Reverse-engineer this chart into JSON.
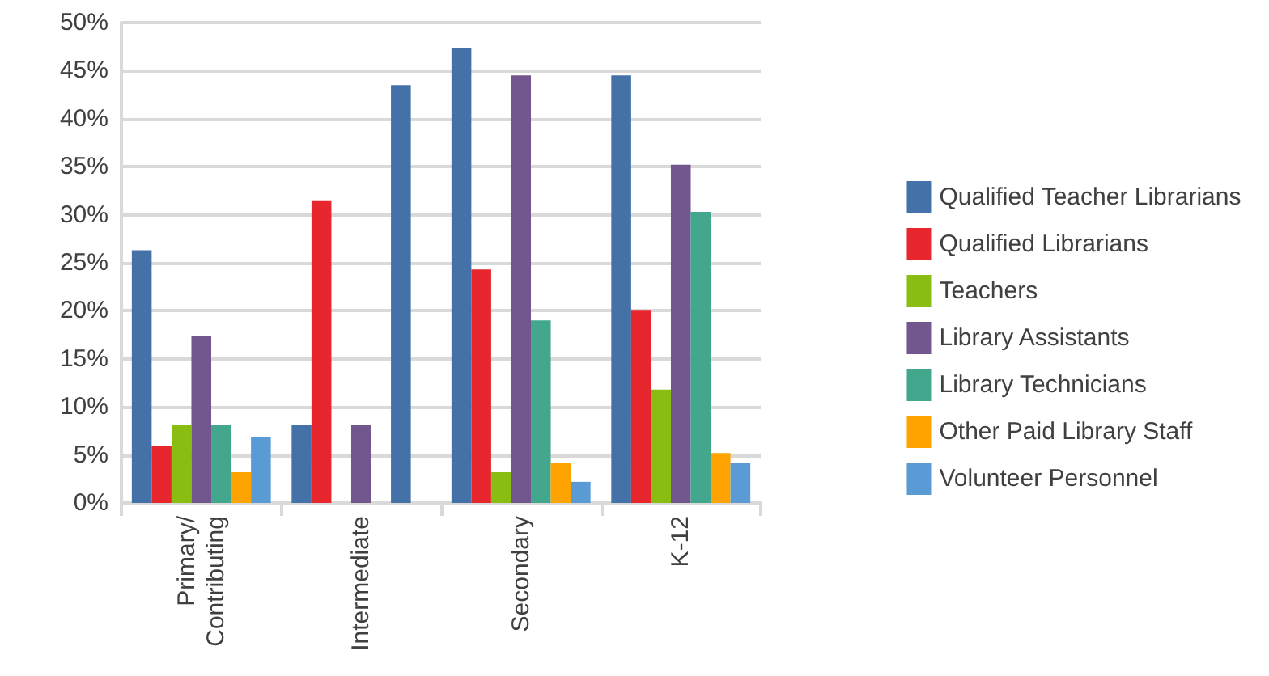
{
  "chart_data": {
    "type": "bar",
    "categories": [
      "Primary/\nContributing",
      "Intermediate",
      "Secondary",
      "K-12"
    ],
    "series": [
      {
        "name": "Qualified Teacher Librarians",
        "color": "#4472a8",
        "values": [
          26.3,
          8.1,
          47.4,
          44.5
        ]
      },
      {
        "name": "Qualified Librarians",
        "color": "#e8262e",
        "values": [
          5.9,
          31.5,
          24.3,
          20.1
        ]
      },
      {
        "name": "Teachers",
        "color": "#8abd12",
        "values": [
          8.1,
          null,
          3.2,
          11.8
        ]
      },
      {
        "name": "Library Assistants",
        "color": "#72578e",
        "values": [
          17.4,
          8.1,
          44.5,
          35.2
        ]
      },
      {
        "name": "Library Technicians",
        "color": "#42a78d",
        "values": [
          8.1,
          null,
          19.0,
          30.3
        ]
      },
      {
        "name": "Other Paid Library Staff",
        "color": "#ffa300",
        "colors": [
          "#ffa300",
          "#4472a8",
          "#ffa300",
          "#ffa300"
        ],
        "values": [
          3.2,
          43.5,
          4.2,
          5.2
        ]
      },
      {
        "name": "Volunteer Personnel",
        "color": "#5b9bd5",
        "values": [
          6.9,
          null,
          2.2,
          4.2
        ]
      }
    ],
    "ylim": [
      0,
      50
    ],
    "yticks": [
      {
        "value": 0,
        "label": "0%"
      },
      {
        "value": 5,
        "label": "5%"
      },
      {
        "value": 10,
        "label": "10%"
      },
      {
        "value": 15,
        "label": "15%"
      },
      {
        "value": 20,
        "label": "20%"
      },
      {
        "value": 25,
        "label": "25%"
      },
      {
        "value": 30,
        "label": "30%"
      },
      {
        "value": 35,
        "label": "35%"
      },
      {
        "value": 40,
        "label": "40%"
      },
      {
        "value": 45,
        "label": "45%"
      },
      {
        "value": 50,
        "label": "50%"
      }
    ],
    "grid": "y",
    "legend": "right"
  }
}
